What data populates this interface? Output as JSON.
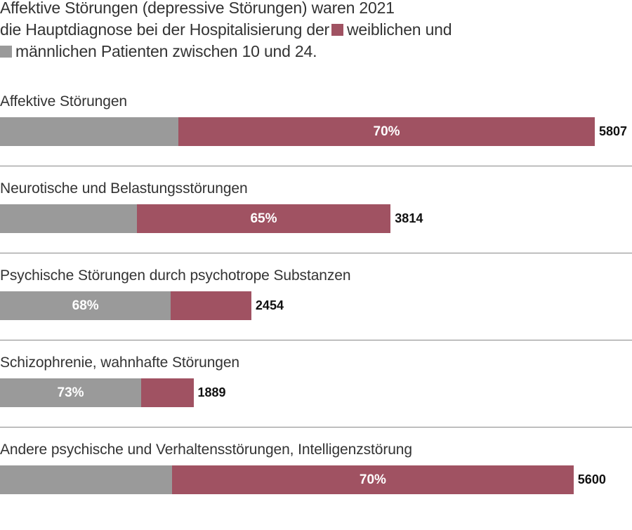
{
  "title_lines": [
    "Affektive Störungen (depressive Störungen) waren 2021",
    "die Hauptdiagnose bei der Hospitalisierung der",
    "weiblichen und",
    "männlichen Patienten zwischen 10 und 24."
  ],
  "colors": {
    "female": "#a05262",
    "male": "#9a9a9a"
  },
  "chart_data": {
    "type": "bar",
    "orientation": "horizontal",
    "stacked": true,
    "legend": [
      {
        "name": "weiblich",
        "color": "#a05262"
      },
      {
        "name": "männlich",
        "color": "#9a9a9a"
      }
    ],
    "categories": [
      "Affektive Störungen",
      "Neurotische und Belastungsstörungen",
      "Psychische Störungen durch psychotrope Substanzen",
      "Schizophrenie, wahnhafte Störungen",
      "Andere psychische und Verhaltensstörungen, Intelligenzstörung"
    ],
    "totals": [
      5807,
      3814,
      2454,
      1889,
      5600
    ],
    "total_labels": [
      "5807",
      "3814",
      "2454",
      "1889",
      "5600"
    ],
    "male_pct": [
      30,
      35,
      68,
      73,
      30
    ],
    "female_pct": [
      70,
      65,
      32,
      27,
      70
    ],
    "pct_labels": [
      "70%",
      "65%",
      "68%",
      "73%",
      "70%"
    ],
    "pct_label_segment": [
      "female",
      "female",
      "male",
      "male",
      "female"
    ],
    "xlim": [
      0,
      5807
    ]
  }
}
